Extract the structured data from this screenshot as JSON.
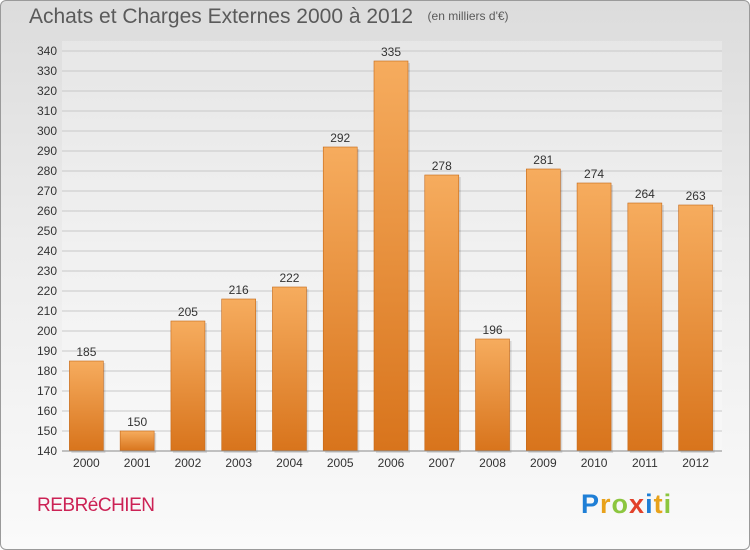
{
  "title": "Achats et Charges Externes 2000 à 2012",
  "subtitle": "(en milliers d'€)",
  "place": "REBRéCHIEN",
  "logo": {
    "letters": [
      "P",
      "r",
      "o",
      "x",
      "i",
      "t",
      "i"
    ],
    "colors": [
      "#1f7fd6",
      "#e8a21b",
      "#8cc63f",
      "#e2412a",
      "#1f7fd6",
      "#e8a21b",
      "#8cc63f"
    ]
  },
  "colors": {
    "bar": "#f28c28",
    "bar_light": "#f6ac5e",
    "bar_dark": "#d8741c",
    "grid": "#c8c8c8",
    "text": "#333333"
  },
  "chart_data": {
    "type": "bar",
    "categories": [
      "2000",
      "2001",
      "2002",
      "2003",
      "2004",
      "2005",
      "2006",
      "2007",
      "2008",
      "2009",
      "2010",
      "2011",
      "2012"
    ],
    "values": [
      185,
      150,
      205,
      216,
      222,
      292,
      335,
      278,
      196,
      281,
      274,
      264,
      263
    ],
    "ylim": [
      140,
      340
    ],
    "ytick_step": 10,
    "grid": true,
    "data_labels": true
  }
}
